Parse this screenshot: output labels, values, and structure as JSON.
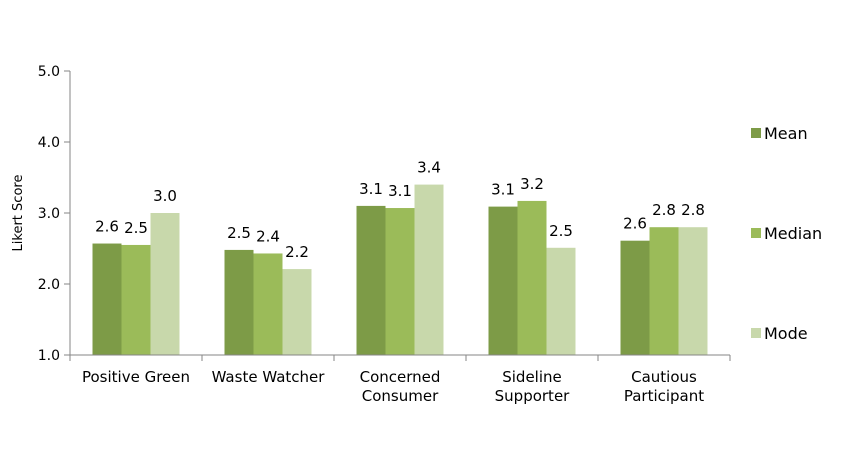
{
  "chart_data": {
    "type": "bar",
    "title": "",
    "xlabel": "",
    "ylabel": "Likert Score",
    "ylim": [
      1.0,
      5.0
    ],
    "yticks": [
      1.0,
      2.0,
      3.0,
      4.0,
      5.0
    ],
    "ytick_labels": [
      "1.0",
      "2.0",
      "3.0",
      "4.0",
      "5.0"
    ],
    "grid": false,
    "legend_position": "right",
    "categories": [
      [
        "Positive Green"
      ],
      [
        "Waste Watcher"
      ],
      [
        "Concerned",
        "Consumer"
      ],
      [
        "Sideline",
        "Supporter"
      ],
      [
        "Cautious",
        "Participant"
      ]
    ],
    "series": [
      {
        "name": "Mean",
        "color": "#7D9B47",
        "values": [
          2.57,
          2.48,
          3.1,
          3.09,
          2.61
        ],
        "labels": [
          "2.6",
          "2.5",
          "3.1",
          "3.1",
          "2.6"
        ]
      },
      {
        "name": "Median",
        "color": "#9BBB59",
        "values": [
          2.55,
          2.43,
          3.07,
          3.17,
          2.8
        ],
        "labels": [
          "2.5",
          "2.4",
          "3.1",
          "3.2",
          "2.8"
        ]
      },
      {
        "name": "Mode",
        "color": "#C8D8AB",
        "values": [
          3.0,
          2.21,
          3.4,
          2.51,
          2.8
        ],
        "labels": [
          "3.0",
          "2.2",
          "3.4",
          "2.5",
          "2.8"
        ]
      }
    ]
  }
}
